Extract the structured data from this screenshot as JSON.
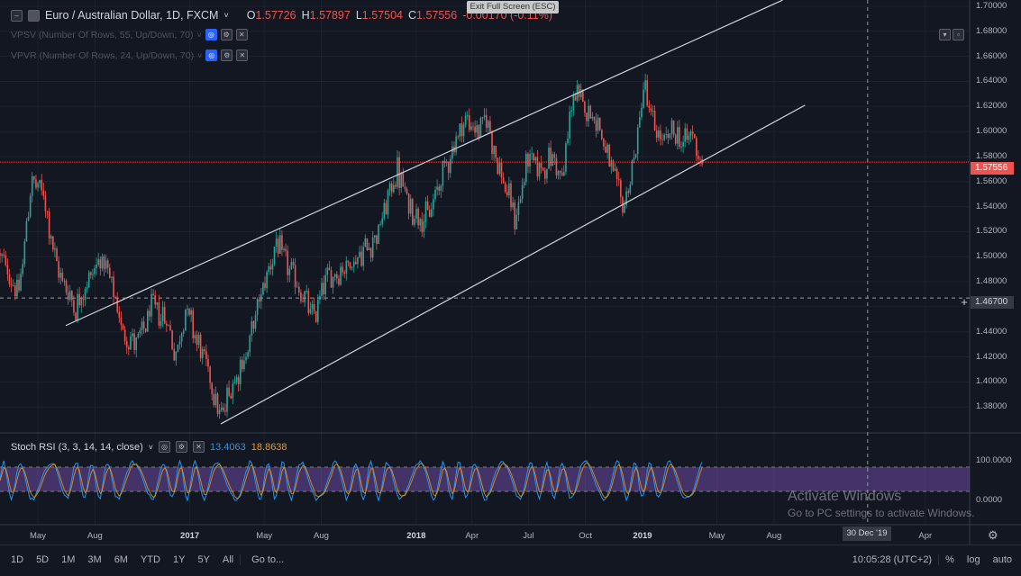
{
  "header": {
    "symbol_title": "Euro / Australian Dollar, 1D, FXCM",
    "ohlc": [
      {
        "key": "O",
        "value": "1.57726"
      },
      {
        "key": "H",
        "value": "1.57897"
      },
      {
        "key": "L",
        "value": "1.57504"
      },
      {
        "key": "C",
        "value": "1.57556"
      }
    ],
    "change": "-0.00170 (-0.11%)",
    "exit_fullscreen": "Exit Full Screen (ESC)"
  },
  "indicators": [
    {
      "label": "VPSV (Number Of Rows, 55, Up/Down, 70)"
    },
    {
      "label": "VPVR (Number Of Rows, 24, Up/Down, 70)"
    }
  ],
  "rsi_panel": {
    "title": "Stoch RSI (3, 3, 14, 14, close)",
    "k_value": "13.4063",
    "d_value": "18.8638",
    "axis_labels": [
      "100.0000",
      "0.0000"
    ]
  },
  "price_axis": {
    "current_price": "1.57556",
    "crosshair_price": "1.46700"
  },
  "time_axis": {
    "labels": [
      "May",
      "Aug",
      "2017",
      "May",
      "Aug",
      "2018",
      "Apr",
      "Jul",
      "Oct",
      "2019",
      "May",
      "Aug",
      "Apr"
    ],
    "crosshair_date": "30 Dec '19"
  },
  "bottom_bar": {
    "ranges": [
      "1D",
      "5D",
      "1M",
      "3M",
      "6M",
      "YTD",
      "1Y",
      "5Y",
      "All"
    ],
    "goto": "Go to...",
    "clock": "10:05:28 (UTC+2)",
    "options": [
      "%",
      "log",
      "auto"
    ]
  },
  "watermark": {
    "line1": "Activate Windows",
    "line2": "Go to PC settings to activate Windows."
  },
  "colors": {
    "background": "#131722",
    "up": "#26a69a",
    "down": "#ef5350",
    "channel": "#d1d4dc",
    "rsi_band": "#7e57c2",
    "current_price": "#ef5350"
  },
  "chart_data": {
    "type": "candlestick",
    "symbol": "EUR/AUD",
    "interval": "1D",
    "ylim": [
      1.36,
      1.7
    ],
    "y_ticks": [
      1.38,
      1.4,
      1.42,
      1.44,
      1.46,
      1.48,
      1.5,
      1.52,
      1.54,
      1.56,
      1.58,
      1.6,
      1.62,
      1.64,
      1.66,
      1.68,
      1.7
    ],
    "y_tick_labels": [
      "1.38000",
      "1.40000",
      "1.42000",
      "1.44000",
      "1.46000",
      "1.48000",
      "1.50000",
      "1.52000",
      "1.54000",
      "1.56000",
      "1.58000",
      "1.60000",
      "1.62000",
      "1.64000",
      "1.66000",
      "1.68000",
      "1.70000"
    ],
    "x_ticks": [
      "2016-05",
      "2016-08",
      "2017-01",
      "2017-05",
      "2017-08",
      "2018-01",
      "2018-04",
      "2018-07",
      "2018-10",
      "2019-01",
      "2019-05",
      "2019-08",
      "2020-04"
    ],
    "price_path": [
      {
        "date": "2016-03-01",
        "price": 1.5
      },
      {
        "date": "2016-04-01",
        "price": 1.47
      },
      {
        "date": "2016-04-20",
        "price": 1.56
      },
      {
        "date": "2016-05-10",
        "price": 1.55
      },
      {
        "date": "2016-06-01",
        "price": 1.49
      },
      {
        "date": "2016-07-01",
        "price": 1.46
      },
      {
        "date": "2016-07-20",
        "price": 1.48
      },
      {
        "date": "2016-08-10",
        "price": 1.5
      },
      {
        "date": "2016-08-25",
        "price": 1.48
      },
      {
        "date": "2016-09-15",
        "price": 1.44
      },
      {
        "date": "2016-10-10",
        "price": 1.43
      },
      {
        "date": "2016-11-01",
        "price": 1.46
      },
      {
        "date": "2016-11-25",
        "price": 1.45
      },
      {
        "date": "2016-12-10",
        "price": 1.42
      },
      {
        "date": "2016-12-25",
        "price": 1.46
      },
      {
        "date": "2017-01-15",
        "price": 1.43
      },
      {
        "date": "2017-02-05",
        "price": 1.4
      },
      {
        "date": "2017-02-20",
        "price": 1.37
      },
      {
        "date": "2017-03-10",
        "price": 1.4
      },
      {
        "date": "2017-04-01",
        "price": 1.42
      },
      {
        "date": "2017-05-01",
        "price": 1.48
      },
      {
        "date": "2017-05-20",
        "price": 1.51
      },
      {
        "date": "2017-06-10",
        "price": 1.49
      },
      {
        "date": "2017-07-01",
        "price": 1.47
      },
      {
        "date": "2017-07-20",
        "price": 1.45
      },
      {
        "date": "2017-08-05",
        "price": 1.48
      },
      {
        "date": "2017-09-01",
        "price": 1.49
      },
      {
        "date": "2017-10-01",
        "price": 1.5
      },
      {
        "date": "2017-11-01",
        "price": 1.52
      },
      {
        "date": "2017-12-01",
        "price": 1.57
      },
      {
        "date": "2017-12-20",
        "price": 1.54
      },
      {
        "date": "2018-01-20",
        "price": 1.53
      },
      {
        "date": "2018-02-15",
        "price": 1.57
      },
      {
        "date": "2018-03-20",
        "price": 1.61
      },
      {
        "date": "2018-04-10",
        "price": 1.6
      },
      {
        "date": "2018-04-25",
        "price": 1.61
      },
      {
        "date": "2018-05-15",
        "price": 1.57
      },
      {
        "date": "2018-06-10",
        "price": 1.53
      },
      {
        "date": "2018-07-01",
        "price": 1.58
      },
      {
        "date": "2018-07-20",
        "price": 1.57
      },
      {
        "date": "2018-08-10",
        "price": 1.58
      },
      {
        "date": "2018-08-25",
        "price": 1.56
      },
      {
        "date": "2018-09-10",
        "price": 1.63
      },
      {
        "date": "2018-10-01",
        "price": 1.62
      },
      {
        "date": "2018-10-20",
        "price": 1.61
      },
      {
        "date": "2018-11-10",
        "price": 1.57
      },
      {
        "date": "2018-12-01",
        "price": 1.54
      },
      {
        "date": "2018-12-20",
        "price": 1.58
      },
      {
        "date": "2019-01-03",
        "price": 1.64
      },
      {
        "date": "2019-01-15",
        "price": 1.61
      },
      {
        "date": "2019-02-01",
        "price": 1.59
      },
      {
        "date": "2019-02-20",
        "price": 1.6
      },
      {
        "date": "2019-03-10",
        "price": 1.59
      },
      {
        "date": "2019-03-20",
        "price": 1.6
      },
      {
        "date": "2019-04-08",
        "price": 1.5756
      }
    ],
    "channel_lines": [
      {
        "name": "",
        "points": [
          {
            "date": "2016-06-15",
            "price": 1.445
          },
          {
            "date": "2019-08-15",
            "price": 1.705
          }
        ]
      },
      {
        "name": "",
        "points": [
          {
            "date": "2017-02-20",
            "price": 1.3665
          },
          {
            "date": "2019-09-20",
            "price": 1.621
          }
        ]
      }
    ],
    "current_price": 1.57556,
    "crosshair": {
      "price": 1.467,
      "date": "2019-12-30"
    }
  }
}
